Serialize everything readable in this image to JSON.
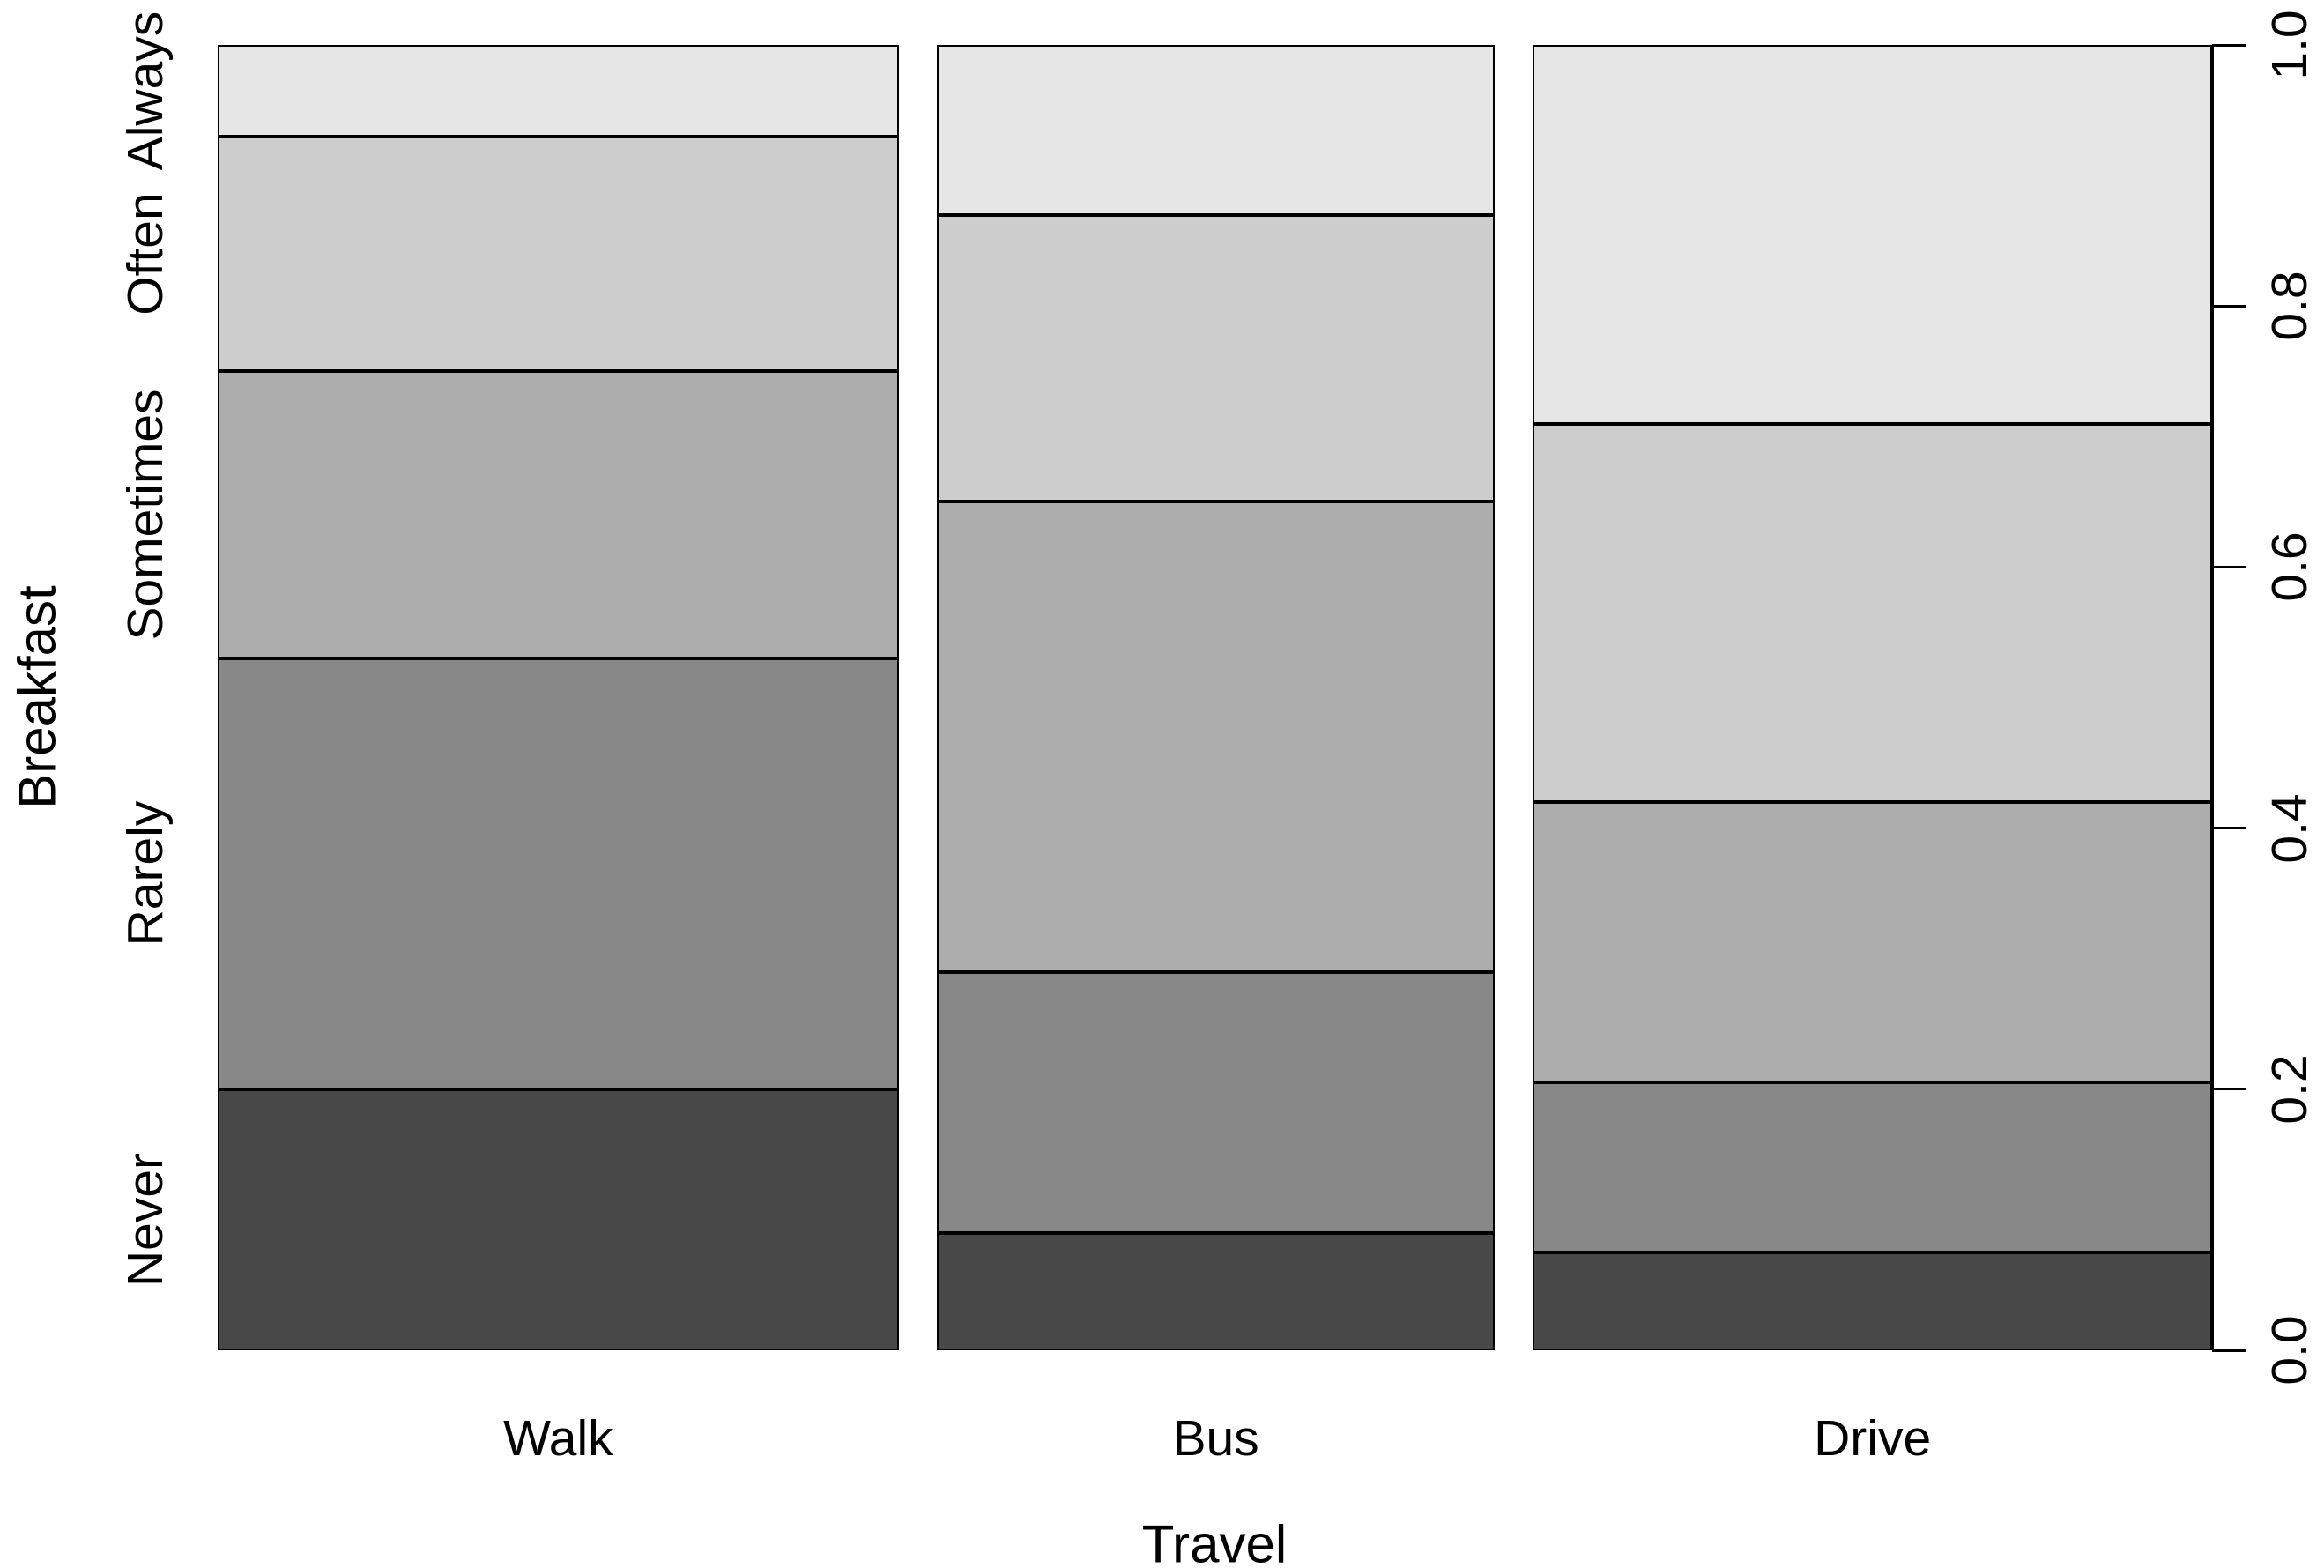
{
  "figure": {
    "background": "#FFFFFF",
    "text_color": "#000000",
    "border_color": "#000000"
  },
  "chart_data": {
    "type": "bar",
    "variant": "mosaic-spineplot",
    "title": "",
    "xlabel": "Travel",
    "ylabel": "Breakfast",
    "categories": [
      "Walk",
      "Bus",
      "Drive"
    ],
    "column_width_fractions": [
      0.355,
      0.291,
      0.354
    ],
    "stack_order_bottom_to_top": [
      "Never",
      "Rarely",
      "Sometimes",
      "Often",
      "Always"
    ],
    "series": [
      {
        "name": "Never",
        "color": "#484848",
        "values": [
          0.2,
          0.09,
          0.075
        ]
      },
      {
        "name": "Rarely",
        "color": "#888888",
        "values": [
          0.33,
          0.2,
          0.13
        ]
      },
      {
        "name": "Sometimes",
        "color": "#ADADAD",
        "values": [
          0.22,
          0.36,
          0.215
        ]
      },
      {
        "name": "Often",
        "color": "#CDCDCD",
        "values": [
          0.18,
          0.22,
          0.29
        ]
      },
      {
        "name": "Always",
        "color": "#E6E6E6",
        "values": [
          0.07,
          0.13,
          0.29
        ]
      }
    ],
    "y_axis": {
      "side": "right",
      "ticks": [
        "0.0",
        "0.2",
        "0.4",
        "0.6",
        "0.8",
        "1.0"
      ],
      "range": [
        0,
        1
      ]
    },
    "row_labels_side": "left",
    "grid": false,
    "legend": "none"
  }
}
